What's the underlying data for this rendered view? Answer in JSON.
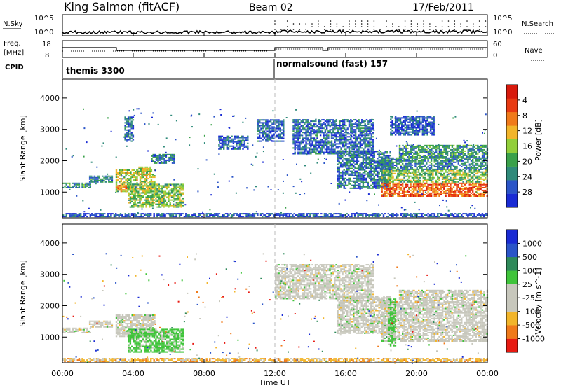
{
  "header": {
    "station": "King Salmon (fitACF)",
    "beam": "Beam 02",
    "date": "17/Feb/2011"
  },
  "summary_panel": {
    "nsky_label": "N.Sky",
    "nsearch_label": "N.Search",
    "nsky_ticks": [
      "10^5",
      "10^0"
    ],
    "nsearch_ticks": [
      "10^5",
      "10^0"
    ],
    "freq_label_1": "Freq.",
    "freq_label_2": "[MHz]",
    "freq_ticks": [
      "18",
      "8"
    ],
    "nave_label": "Nave",
    "nave_ticks": [
      "60",
      "0"
    ],
    "cpid_label": "CPID",
    "cpid_segments": [
      {
        "name": "themis 3300",
        "start_hour": 0.0
      },
      {
        "name": "normalsound (fast) 157",
        "start_hour": 12.0
      }
    ]
  },
  "x_axis": {
    "label": "Time UT",
    "ticks": [
      "00:00",
      "04:00",
      "08:00",
      "12:00",
      "16:00",
      "20:00",
      "00:00"
    ],
    "range_hours": [
      0,
      24
    ]
  },
  "colors": {
    "power_scale": [
      "#1a2bd4",
      "#2b55c8",
      "#2f8a7a",
      "#3aa14a",
      "#92cf3a",
      "#f2b52a",
      "#f07a1a",
      "#e83a12",
      "#d81a0c"
    ],
    "velocity_scale": [
      "#1a2bd4",
      "#2b55c8",
      "#2f8a5a",
      "#3fc43a",
      "#c7c7bc",
      "#c7c7bc",
      "#f2b52a",
      "#f07a1a",
      "#e81a12"
    ],
    "ground_scatter": "#c7c7bc"
  },
  "chart_data": [
    {
      "type": "heatmap",
      "panel": "power",
      "ylabel": "Slant Range [km]",
      "ylim": [
        180,
        4600
      ],
      "yticks": [
        1000,
        2000,
        3000,
        4000
      ],
      "xlim": [
        0,
        24
      ],
      "colorbar": {
        "label": "Power [dB]",
        "range": [
          0,
          30
        ],
        "ticks": [
          "4",
          "8",
          "12",
          "16",
          "20",
          "24",
          "28"
        ]
      },
      "regions": [
        {
          "t0": 0.0,
          "t1": 1.6,
          "r0": 1120,
          "r1": 1300,
          "level": 0.3
        },
        {
          "t0": 1.5,
          "t1": 2.8,
          "r0": 1300,
          "r1": 1520,
          "level": 0.25
        },
        {
          "t0": 3.0,
          "t1": 5.2,
          "r0": 1000,
          "r1": 1700,
          "level": 0.5
        },
        {
          "t0": 3.1,
          "t1": 3.6,
          "r0": 1000,
          "r1": 1200,
          "level": 0.8
        },
        {
          "t0": 4.2,
          "t1": 5.0,
          "r0": 1500,
          "r1": 1800,
          "level": 0.55
        },
        {
          "t0": 5.0,
          "t1": 6.3,
          "r0": 1900,
          "r1": 2200,
          "level": 0.2
        },
        {
          "t0": 3.7,
          "t1": 6.8,
          "r0": 500,
          "r1": 1250,
          "level": 0.45
        },
        {
          "t0": 3.5,
          "t1": 4.0,
          "r0": 2600,
          "r1": 3400,
          "level": 0.15
        },
        {
          "t0": 8.8,
          "t1": 10.5,
          "r0": 2350,
          "r1": 2800,
          "level": 0.15
        },
        {
          "t0": 11.0,
          "t1": 12.5,
          "r0": 2600,
          "r1": 3300,
          "level": 0.15
        },
        {
          "t0": 13.0,
          "t1": 17.5,
          "r0": 2200,
          "r1": 3300,
          "level": 0.15
        },
        {
          "t0": 15.5,
          "t1": 18.5,
          "r0": 1100,
          "r1": 2300,
          "level": 0.2
        },
        {
          "t0": 18.0,
          "t1": 24.0,
          "r0": 850,
          "r1": 1300,
          "level": 0.8
        },
        {
          "t0": 18.0,
          "t1": 24.0,
          "r0": 1300,
          "r1": 1700,
          "level": 0.45
        },
        {
          "t0": 18.0,
          "t1": 24.0,
          "r0": 1700,
          "r1": 2100,
          "level": 0.25
        },
        {
          "t0": 19.0,
          "t1": 24.0,
          "r0": 2100,
          "r1": 2500,
          "level": 0.3
        },
        {
          "t0": 18.5,
          "t1": 21.0,
          "r0": 2800,
          "r1": 3400,
          "level": 0.1
        },
        {
          "t0": 0.0,
          "t1": 24.0,
          "r0": 200,
          "r1": 330,
          "level": 0.1
        }
      ]
    },
    {
      "type": "heatmap",
      "panel": "velocity",
      "ylabel": "Slant Range [km]",
      "ylim": [
        180,
        4600
      ],
      "yticks": [
        1000,
        2000,
        3000,
        4000
      ],
      "xlim": [
        0,
        24
      ],
      "colorbar": {
        "label": "Velocity [m s^-1]",
        "range": [
          -1000,
          1000
        ],
        "ticks": [
          "1000",
          "500",
          "100",
          "25",
          "-25",
          "-100",
          "-500",
          "-1000"
        ]
      },
      "regions": [
        {
          "t0": 0.0,
          "t1": 1.6,
          "r0": 1120,
          "r1": 1300,
          "level": 0.5
        },
        {
          "t0": 1.5,
          "t1": 2.8,
          "r0": 1300,
          "r1": 1520,
          "level": 0.5
        },
        {
          "t0": 3.0,
          "t1": 5.2,
          "r0": 1000,
          "r1": 1700,
          "level": 0.5
        },
        {
          "t0": 3.7,
          "t1": 6.8,
          "r0": 500,
          "r1": 1250,
          "level": 0.35
        },
        {
          "t0": 12.0,
          "t1": 17.5,
          "r0": 2200,
          "r1": 3300,
          "level": 0.5
        },
        {
          "t0": 15.5,
          "t1": 18.5,
          "r0": 1100,
          "r1": 2300,
          "level": 0.5
        },
        {
          "t0": 18.0,
          "t1": 24.0,
          "r0": 850,
          "r1": 2100,
          "level": 0.5
        },
        {
          "t0": 19.0,
          "t1": 24.0,
          "r0": 2100,
          "r1": 2500,
          "level": 0.5
        },
        {
          "t0": 18.4,
          "t1": 18.8,
          "r0": 700,
          "r1": 2200,
          "level": 0.35
        },
        {
          "t0": 0.0,
          "t1": 24.0,
          "r0": 200,
          "r1": 330,
          "level": 0.7
        }
      ]
    }
  ]
}
